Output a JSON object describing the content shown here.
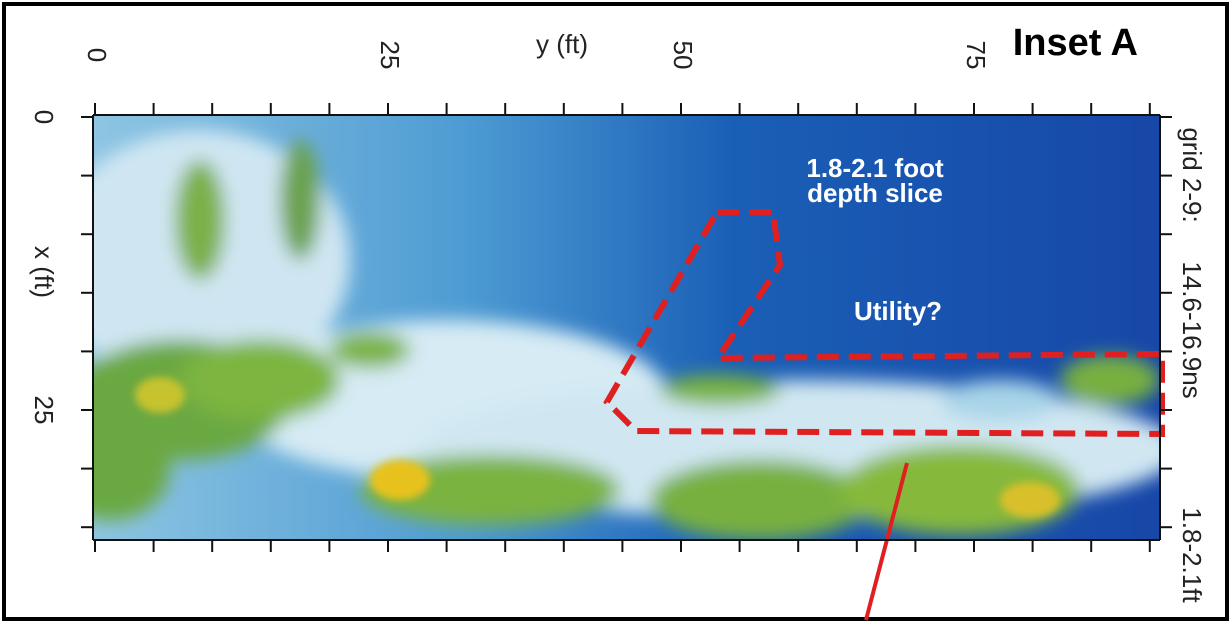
{
  "header": {
    "title": "Inset A"
  },
  "axes": {
    "top": {
      "label": "y (ft)",
      "ticks": [
        "0",
        "25",
        "50",
        "75"
      ]
    },
    "left": {
      "label": "x (ft)",
      "ticks": [
        "0",
        "25"
      ]
    }
  },
  "side_note": [
    "grid 2-9:",
    "14.6-16.9ns",
    "1.8-2.1ft"
  ],
  "annotations": {
    "slice": [
      "1.8-2.1 foot",
      "depth slice"
    ],
    "utility": "Utility?"
  }
}
